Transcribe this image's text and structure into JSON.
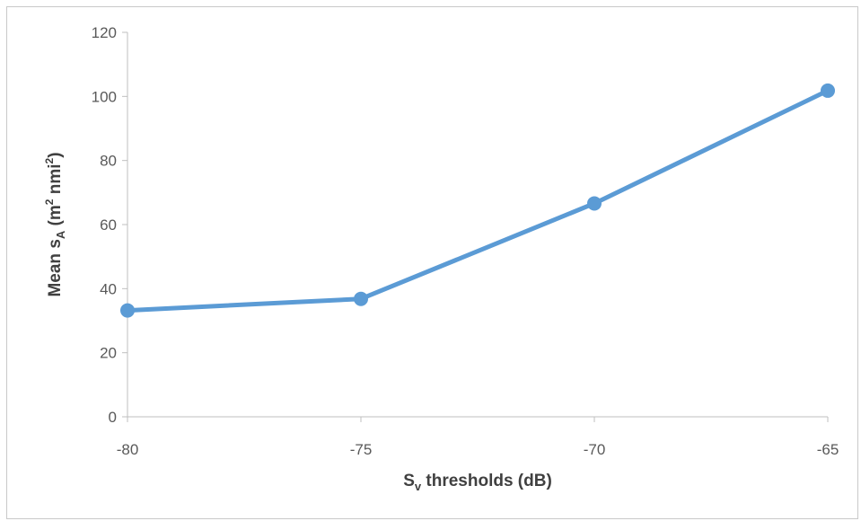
{
  "chart_data": {
    "type": "line",
    "x": [
      -80,
      -75,
      -70,
      -65
    ],
    "series": [
      {
        "values": [
          33.2,
          36.8,
          66.6,
          101.8
        ],
        "color": "#5b9bd5"
      }
    ],
    "xlabel": {
      "main": "S",
      "sub": "v",
      "rest": " thresholds (dB)"
    },
    "ylabel": {
      "main": "Mean s",
      "sub": "A",
      "mid": " (m",
      "sup1": "2",
      "mid2": " nmi",
      "sup2": "2",
      "end": ")"
    },
    "xlim": [
      -80,
      -65
    ],
    "ylim": [
      0,
      120
    ],
    "xticks": [
      -80,
      -75,
      -70,
      -65
    ],
    "yticks": [
      0,
      20,
      40,
      60,
      80,
      100,
      120
    ],
    "grid": false,
    "legend": false,
    "axis_color": "#bfbfbf"
  }
}
